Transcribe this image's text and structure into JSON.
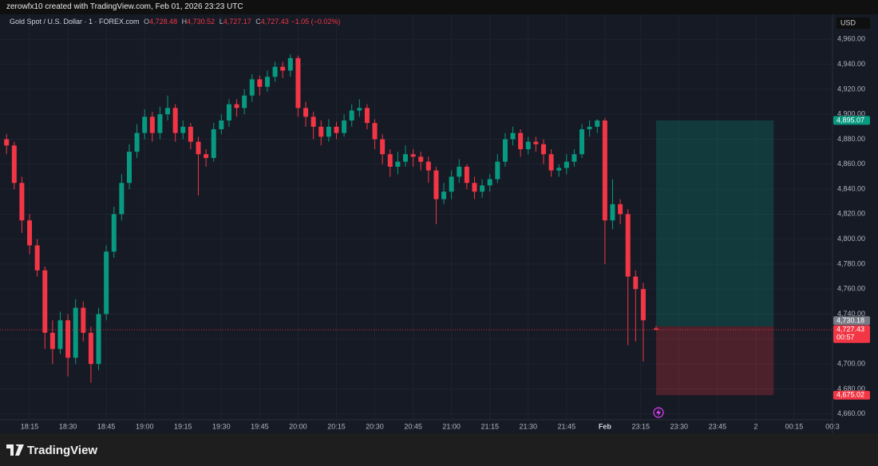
{
  "header": "zerowfx10 created with TradingView.com, Feb 01, 2026 23:23 UTC",
  "legend": {
    "symbol": "Gold Spot / U.S. Dollar · 1 · FOREX.com",
    "items": [
      {
        "key": "O",
        "value": "4,728.48"
      },
      {
        "key": "H",
        "value": "4,730.52"
      },
      {
        "key": "L",
        "value": "4,727.17"
      },
      {
        "key": "C",
        "value": "4,727.43"
      }
    ],
    "change": "−1.05 (−0.02%)"
  },
  "brand": "TradingView",
  "chart_data": {
    "type": "candlestick",
    "currency": "USD",
    "up_color": "#089981",
    "down_color": "#f23645",
    "grid": true,
    "x": [
      0,
      3,
      6,
      9,
      12,
      15,
      18,
      21,
      24,
      27,
      30,
      33,
      36,
      39,
      42,
      45,
      48,
      51,
      54,
      57,
      60,
      63,
      66,
      69,
      72,
      75,
      78,
      81,
      84,
      87,
      90,
      93,
      96,
      99,
      102,
      105,
      108,
      111,
      114,
      117,
      120,
      123,
      126,
      129,
      132,
      135,
      138,
      141,
      144,
      147,
      150,
      153,
      156,
      159,
      162,
      165,
      168,
      171,
      174,
      177,
      180,
      183,
      186,
      189,
      192,
      195,
      198,
      201,
      204,
      207,
      210,
      213,
      216,
      219,
      222,
      225,
      228,
      231,
      234,
      237,
      240,
      243,
      246,
      249,
      254
    ],
    "open": [
      4880,
      4875,
      4845,
      4815,
      4795,
      4775,
      4725,
      4712,
      4735,
      4705,
      4745,
      4725,
      4700,
      4740,
      4790,
      4820,
      4845,
      4870,
      4885,
      4898,
      4885,
      4900,
      4905,
      4885,
      4890,
      4878,
      4868,
      4865,
      4888,
      4895,
      4908,
      4905,
      4915,
      4928,
      4922,
      4930,
      4938,
      4935,
      4945,
      4905,
      4898,
      4890,
      4882,
      4890,
      4885,
      4895,
      4903,
      4905,
      4893,
      4880,
      4868,
      4858,
      4862,
      4868,
      4866,
      4862,
      4855,
      4832,
      4838,
      4850,
      4858,
      4845,
      4838,
      4843,
      4848,
      4862,
      4880,
      4885,
      4872,
      4878,
      4876,
      4868,
      4855,
      4857,
      4862,
      4868,
      4888,
      4890,
      4895,
      4815,
      4828,
      4820,
      4770,
      4760,
      4728.48
    ],
    "high": [
      4884,
      4878,
      4850,
      4820,
      4800,
      4778,
      4735,
      4742,
      4740,
      4752,
      4750,
      4730,
      4745,
      4795,
      4826,
      4852,
      4876,
      4892,
      4904,
      4902,
      4906,
      4915,
      4908,
      4895,
      4893,
      4882,
      4872,
      4893,
      4900,
      4912,
      4912,
      4920,
      4932,
      4931,
      4935,
      4942,
      4942,
      4948,
      4947,
      4910,
      4902,
      4895,
      4896,
      4894,
      4900,
      4908,
      4912,
      4908,
      4896,
      4884,
      4872,
      4870,
      4875,
      4872,
      4870,
      4866,
      4858,
      4845,
      4855,
      4864,
      4860,
      4850,
      4848,
      4852,
      4868,
      4885,
      4890,
      4888,
      4882,
      4882,
      4880,
      4872,
      4860,
      4868,
      4872,
      4892,
      4895,
      4896,
      4897,
      4848,
      4832,
      4824,
      4775,
      4765,
      4730.52
    ],
    "low": [
      4868,
      4840,
      4805,
      4788,
      4770,
      4712,
      4700,
      4708,
      4690,
      4700,
      4718,
      4685,
      4695,
      4735,
      4785,
      4815,
      4840,
      4865,
      4880,
      4878,
      4880,
      4895,
      4878,
      4880,
      4872,
      4835,
      4858,
      4862,
      4884,
      4890,
      4898,
      4900,
      4910,
      4915,
      4918,
      4926,
      4929,
      4930,
      4898,
      4890,
      4880,
      4875,
      4878,
      4880,
      4882,
      4890,
      4898,
      4888,
      4872,
      4860,
      4850,
      4852,
      4858,
      4858,
      4855,
      4845,
      4812,
      4828,
      4832,
      4845,
      4840,
      4832,
      4833,
      4838,
      4845,
      4858,
      4875,
      4866,
      4868,
      4870,
      4860,
      4850,
      4850,
      4852,
      4858,
      4865,
      4882,
      4885,
      4780,
      4808,
      4812,
      4715,
      4718,
      4702,
      4727.17
    ],
    "close": [
      4875,
      4845,
      4815,
      4795,
      4775,
      4725,
      4712,
      4735,
      4705,
      4745,
      4725,
      4700,
      4740,
      4790,
      4820,
      4845,
      4870,
      4885,
      4898,
      4885,
      4900,
      4905,
      4885,
      4890,
      4878,
      4868,
      4865,
      4888,
      4895,
      4908,
      4905,
      4915,
      4928,
      4922,
      4930,
      4938,
      4935,
      4945,
      4905,
      4898,
      4890,
      4882,
      4890,
      4885,
      4895,
      4903,
      4905,
      4893,
      4880,
      4868,
      4858,
      4862,
      4868,
      4866,
      4862,
      4855,
      4832,
      4838,
      4850,
      4858,
      4845,
      4838,
      4843,
      4848,
      4862,
      4880,
      4885,
      4872,
      4878,
      4876,
      4868,
      4855,
      4857,
      4862,
      4868,
      4888,
      4890,
      4895,
      4815,
      4828,
      4820,
      4770,
      4760,
      4735,
      4727.43
    ],
    "xlim": [
      -1,
      323
    ],
    "xticks": [
      {
        "value": 9,
        "label": "18:15"
      },
      {
        "value": 24,
        "label": "18:30"
      },
      {
        "value": 39,
        "label": "18:45"
      },
      {
        "value": 54,
        "label": "19:00"
      },
      {
        "value": 69,
        "label": "19:15"
      },
      {
        "value": 84,
        "label": "19:30"
      },
      {
        "value": 99,
        "label": "19:45"
      },
      {
        "value": 114,
        "label": "20:00"
      },
      {
        "value": 129,
        "label": "20:15"
      },
      {
        "value": 144,
        "label": "20:30"
      },
      {
        "value": 159,
        "label": "20:45"
      },
      {
        "value": 174,
        "label": "21:00"
      },
      {
        "value": 189,
        "label": "21:15"
      },
      {
        "value": 204,
        "label": "21:30"
      },
      {
        "value": 219,
        "label": "21:45"
      },
      {
        "value": 234,
        "label": "Feb"
      },
      {
        "value": 248,
        "label": "23:15"
      },
      {
        "value": 263,
        "label": "23:30"
      },
      {
        "value": 278,
        "label": "23:45"
      },
      {
        "value": 293,
        "label": "2"
      },
      {
        "value": 308,
        "label": "00:15"
      },
      {
        "value": 323,
        "label": "00:3"
      }
    ],
    "ylim": [
      4656,
      4980
    ],
    "yticks": [
      {
        "value": 4960,
        "label": "4,960.00"
      },
      {
        "value": 4940,
        "label": "4,940.00"
      },
      {
        "value": 4920,
        "label": "4,920.00"
      },
      {
        "value": 4900,
        "label": "4,900.00"
      },
      {
        "value": 4880,
        "label": "4,880.00"
      },
      {
        "value": 4860,
        "label": "4,860.00"
      },
      {
        "value": 4840,
        "label": "4,840.00"
      },
      {
        "value": 4820,
        "label": "4,820.00"
      },
      {
        "value": 4800,
        "label": "4,800.00"
      },
      {
        "value": 4780,
        "label": "4,780.00"
      },
      {
        "value": 4760,
        "label": "4,760.00"
      },
      {
        "value": 4740,
        "label": "4,740.00"
      },
      {
        "value": 4720,
        "label": "4,720.00"
      },
      {
        "value": 4700,
        "label": "4,700.00"
      },
      {
        "value": 4680,
        "label": "4,680.00"
      },
      {
        "value": 4660,
        "label": "4,660.00"
      }
    ],
    "position": {
      "x_start": 254,
      "x_end": 300,
      "target": 4895.07,
      "entry": 4730.18,
      "stop": 4675.02
    },
    "price_labels": [
      {
        "value": 4895.07,
        "label": "4,895.07",
        "color": "#089981"
      },
      {
        "value": 4730.18,
        "label": "4,730.18",
        "color": "#787b86"
      },
      {
        "value": 4727.43,
        "label": "4,727.43",
        "color": "#f23645",
        "countdown": "00:57"
      },
      {
        "value": 4675.02,
        "label": "4,675.02",
        "color": "#f23645"
      }
    ]
  }
}
